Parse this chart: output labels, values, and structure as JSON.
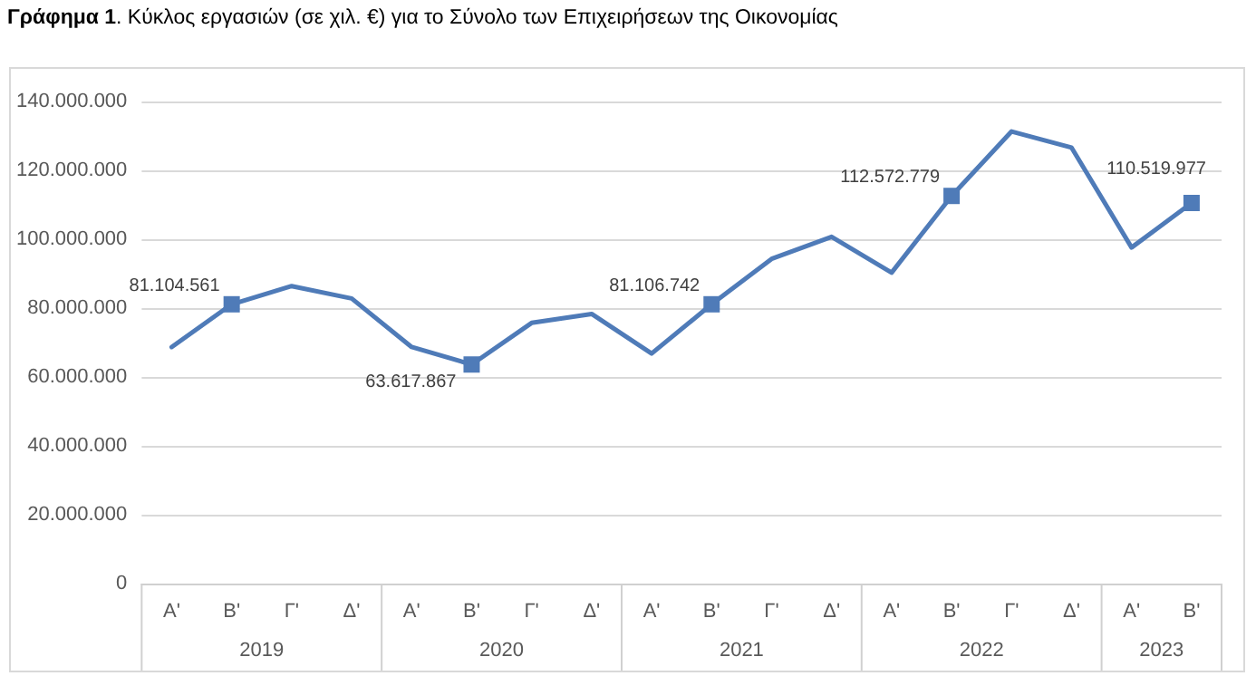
{
  "chart_data": {
    "type": "line",
    "title": "Γράφημα 1. Κύκλος εργασιών (σε χιλ. €) για το Σύνολο των Επιχειρήσεων της Οικονομίας",
    "categories": [
      "Α'",
      "Β'",
      "Γ'",
      "Δ'",
      "Α'",
      "Β'",
      "Γ'",
      "Δ'",
      "Α'",
      "Β'",
      "Γ'",
      "Δ'",
      "Α'",
      "Β'",
      "Γ'",
      "Δ'",
      "Α'",
      "Β'"
    ],
    "annotations": [
      "2019",
      "2020",
      "2021",
      "2022",
      "2023"
    ],
    "series": [
      {
        "color": "#4f7bb8",
        "values": [
          68700000,
          81104561,
          86400000,
          82800000,
          68700000,
          63617867,
          75700000,
          78300000,
          66800000,
          81106742,
          94300000,
          100700000,
          90300000,
          112572779,
          131300000,
          126600000,
          97600000,
          110519977
        ],
        "value_labels": [
          null,
          "81.104.561",
          null,
          null,
          null,
          "63.617.867",
          null,
          null,
          null,
          "81.106.742",
          null,
          null,
          null,
          "112.572.779",
          null,
          null,
          null,
          "110.519.977"
        ]
      }
    ],
    "ylim": [
      0,
      140000000
    ],
    "yticks": [
      0,
      {
        "value": 20000000,
        "label": "20.000.000"
      },
      {
        "value": 40000000,
        "label": "40.000.000"
      },
      {
        "value": 60000000,
        "label": "60.000.000"
      },
      {
        "value": 80000000,
        "label": "80.000.000"
      },
      {
        "value": 100000000,
        "label": "100.000.000"
      },
      {
        "value": 120000000,
        "label": "120.000.000"
      },
      {
        "value": 140000000,
        "label": "140.000.000"
      }
    ],
    "grid": "y",
    "line_style": "solid"
  }
}
